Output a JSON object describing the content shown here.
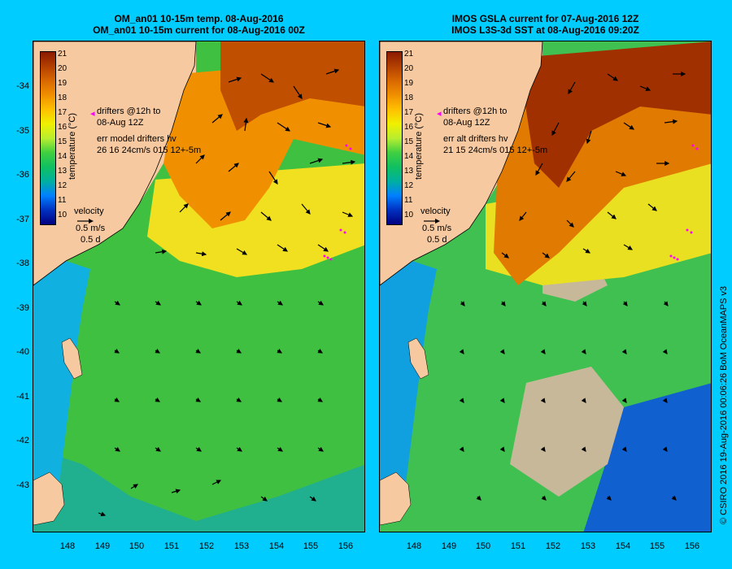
{
  "left_panel": {
    "title_line1": "OM_an01 10-15m temp. 08-Aug-2016",
    "title_line2": "OM_an01 10-15m current for 08-Aug-2016 00Z",
    "legend_drifters": "drifters @12h to",
    "legend_date": "08-Aug 12Z",
    "err_label": "err model drifters hv",
    "err_values": "26 16 24cm/s 015 12+-5m",
    "velocity_label": "velocity",
    "velocity_scale": "0.5 m/s",
    "velocity_days": "0.5 d"
  },
  "right_panel": {
    "title_line1": "IMOS GSLA current for 07-Aug-2016 12Z",
    "title_line2": "IMOS L3S-3d SST at 08-Aug-2016 09:20Z",
    "legend_drifters": "drifters @12h to",
    "legend_date": "08-Aug 12Z",
    "err_label": "err alt drifters hv",
    "err_values": "21 15 24cm/s 015 12+-5m",
    "velocity_label": "velocity",
    "velocity_scale": "0.5 m/s",
    "velocity_days": "0.5 d"
  },
  "colorbar": {
    "label": "temperature (°C)",
    "ticks": [
      "21",
      "20",
      "19",
      "18",
      "17",
      "16",
      "15",
      "14",
      "13",
      "12",
      "11",
      "10"
    ],
    "colors": [
      "#8b1a00",
      "#b34000",
      "#d96800",
      "#f09000",
      "#ffc000",
      "#f0f000",
      "#b8ee30",
      "#40d040",
      "#10c060",
      "#00b0a0",
      "#0080ff",
      "#0030c0",
      "#000080"
    ]
  },
  "axes": {
    "y_ticks": [
      "-34",
      "-35",
      "-36",
      "-37",
      "-38",
      "-39",
      "-40",
      "-41",
      "-42",
      "-43"
    ],
    "x_ticks": [
      "148",
      "149",
      "150",
      "151",
      "152",
      "153",
      "154",
      "155",
      "156"
    ]
  },
  "credit": "© CSIRO 2016   19-Aug-2016 00:06:26 BoM OceanMAPS v3",
  "colors": {
    "land": "#f7c9a0",
    "background": "#00ccff",
    "missing": "#c8b89a",
    "drifter": "#ff00ff"
  }
}
